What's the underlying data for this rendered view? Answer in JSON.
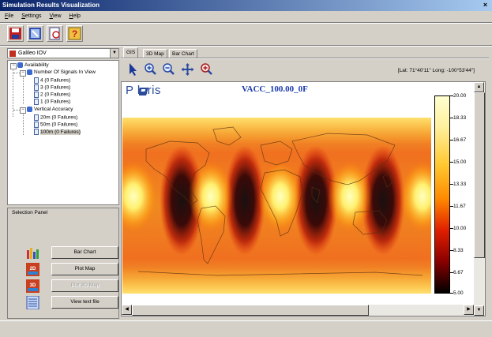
{
  "window": {
    "title": "Simulation Results Visualization",
    "close": "×"
  },
  "menu": [
    "File",
    "Settings",
    "View",
    "Help"
  ],
  "toolbar": {
    "icons": [
      "save-icon",
      "zoom-window-icon",
      "print-preview-icon",
      "help-icon"
    ]
  },
  "constellation": {
    "selected": "Galileo IOV"
  },
  "tree": {
    "root": "Availability",
    "group1": "Number Of Signals In View",
    "group1_items": [
      "4 (0 Failures)",
      "3 (0 Failures)",
      "2 (0 Failures)",
      "1 (0 Failures)"
    ],
    "group2": "Vertical Accuracy",
    "group2_items": [
      "20m (0 Failures)",
      "50m (0 Failures)",
      "100m (0 Failures)"
    ]
  },
  "selection_panel": {
    "title": "Selection Panel",
    "buttons": [
      "Bar Chart",
      "Plot Map",
      "Plot 3D Map",
      "View text file"
    ]
  },
  "tabs": [
    "GIS",
    "3D Map",
    "Bar Chart"
  ],
  "coordinates": "[Lat:  71°40'11\"  Long: -100°53'44\"]",
  "map": {
    "logo": "P   laris",
    "title": "VACC_100.00_0F",
    "colorbar_labels": [
      "20.00",
      "18.33",
      "16.67",
      "15.00",
      "13.33",
      "11.67",
      "10.00",
      "8.33",
      "6.67",
      "5.00"
    ]
  }
}
